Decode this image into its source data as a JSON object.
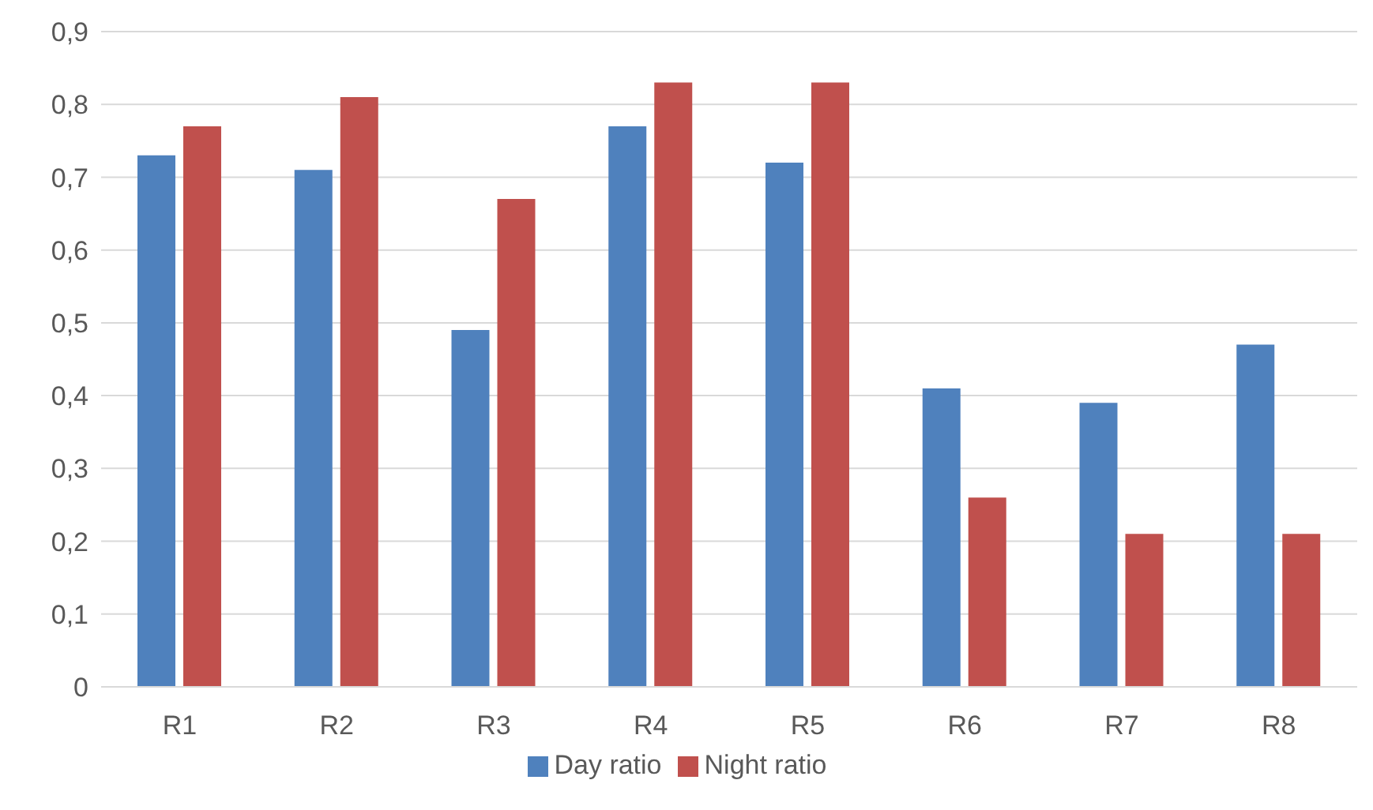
{
  "chart_data": {
    "type": "bar",
    "categories": [
      "R1",
      "R2",
      "R3",
      "R4",
      "R5",
      "R6",
      "R7",
      "R8"
    ],
    "series": [
      {
        "name": "Day ratio",
        "color": "#4f81bd",
        "values": [
          0.73,
          0.71,
          0.49,
          0.77,
          0.72,
          0.41,
          0.39,
          0.47
        ]
      },
      {
        "name": "Night ratio",
        "color": "#c0504d",
        "values": [
          0.77,
          0.81,
          0.67,
          0.83,
          0.83,
          0.26,
          0.21,
          0.21
        ]
      }
    ],
    "ylim": [
      0,
      0.9
    ],
    "yticks": [
      0,
      {
        "value": 0.1,
        "label": "0,1"
      },
      {
        "value": 0.2,
        "label": "0,2"
      },
      {
        "value": 0.3,
        "label": "0,3"
      },
      {
        "value": 0.4,
        "label": "0,4"
      },
      {
        "value": 0.5,
        "label": "0,5"
      },
      {
        "value": 0.6,
        "label": "0,6"
      },
      {
        "value": 0.7,
        "label": "0,7"
      },
      {
        "value": 0.8,
        "label": "0,8"
      },
      {
        "value": 0.9,
        "label": "0,9"
      }
    ],
    "grid": "y",
    "legend": "bottom"
  }
}
